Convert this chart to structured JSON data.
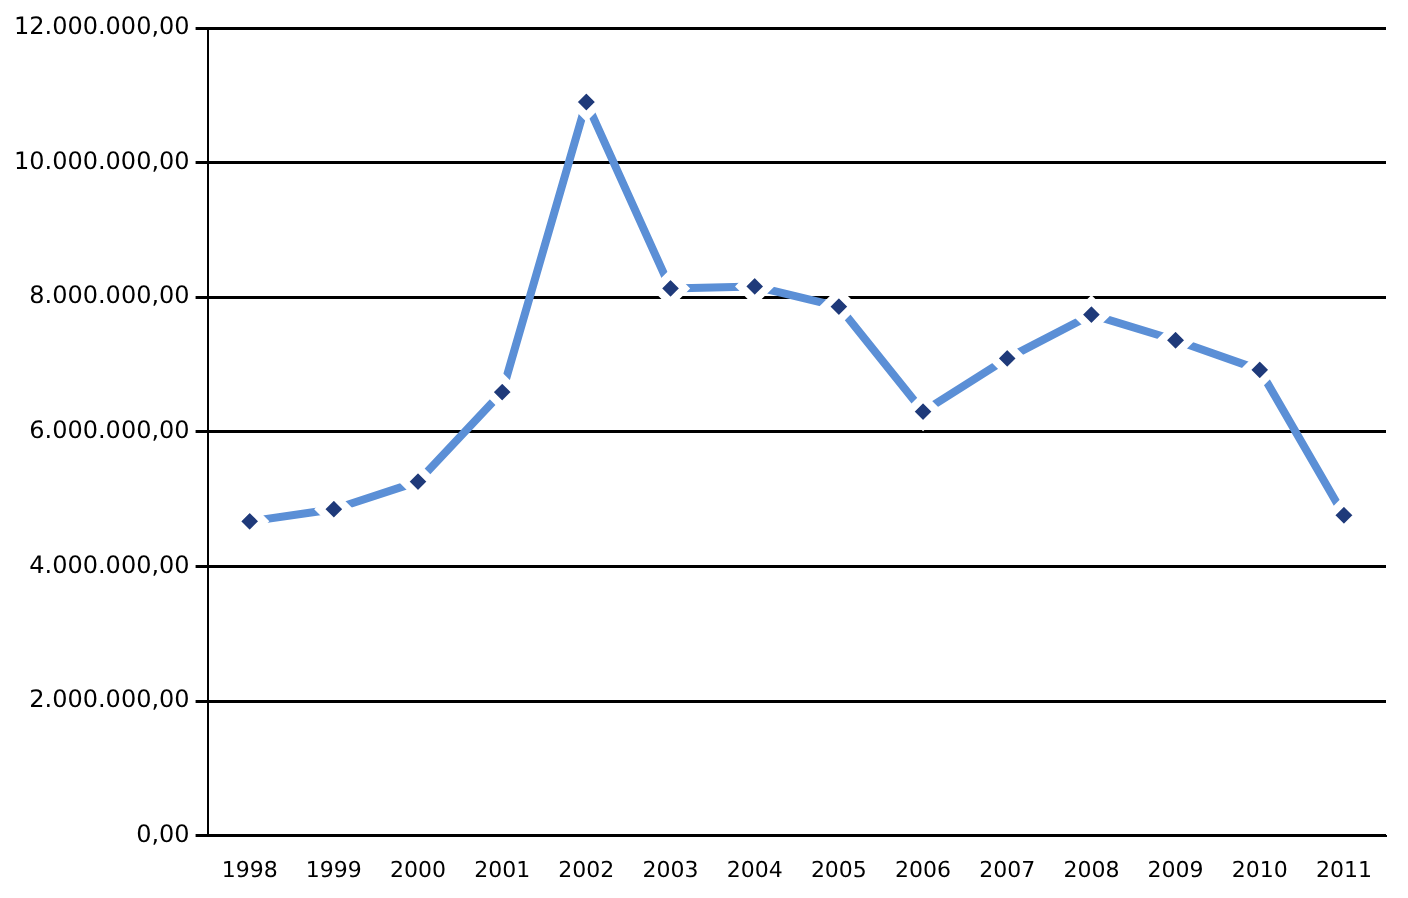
{
  "chart_data": {
    "type": "line",
    "categories": [
      "1998",
      "1999",
      "2000",
      "2001",
      "2002",
      "2003",
      "2004",
      "2005",
      "2006",
      "2007",
      "2008",
      "2009",
      "2010",
      "2011"
    ],
    "series": [
      {
        "color": "#5b8fd6",
        "values": [
          4670000,
          4850000,
          5260000,
          6590000,
          10900000,
          8130000,
          8160000,
          7860000,
          6300000,
          7090000,
          7740000,
          7360000,
          6920000,
          4760000
        ]
      }
    ],
    "ylim": [
      0,
      12000000
    ],
    "yticks": [
      {
        "value": 0,
        "label": "0,00"
      },
      {
        "value": 2000000,
        "label": "2.000.000,00"
      },
      {
        "value": 4000000,
        "label": "4.000.000,00"
      },
      {
        "value": 6000000,
        "label": "6.000.000,00"
      },
      {
        "value": 8000000,
        "label": "8.000.000,00"
      },
      {
        "value": 10000000,
        "label": "10.000.000,00"
      },
      {
        "value": 12000000,
        "label": "12.000.000,00"
      }
    ],
    "grid": "y",
    "legend": false,
    "marker": "diamond",
    "line_style": "solid"
  }
}
